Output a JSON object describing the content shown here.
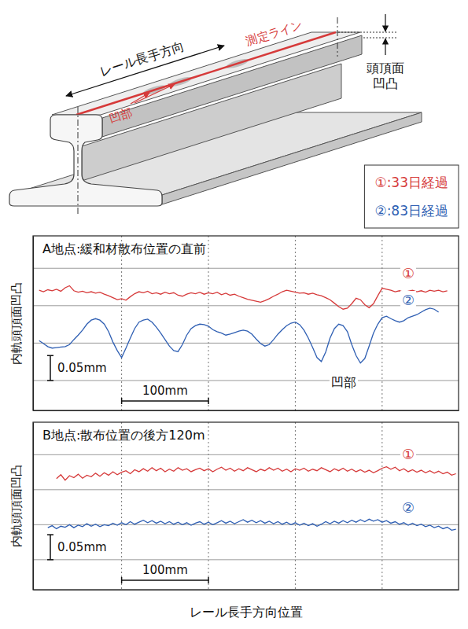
{
  "diagram": {
    "direction": "レール長手方向",
    "measure_line": "測定ライン",
    "recess": "凹部",
    "head_unevenness": [
      "頭頂面",
      "凹凸"
    ]
  },
  "chart_data": [
    {
      "type": "line",
      "title": "A地点:緩和材散布位置の直前",
      "ylabel": "内軌頭頂面凹凸",
      "x": [
        -95,
        -90,
        -85,
        -80,
        -75,
        -70,
        -65,
        -60,
        -55,
        -50,
        -45,
        -40,
        -35,
        -30,
        -25,
        -20,
        -15,
        -10,
        -5,
        0,
        5,
        10,
        15,
        20,
        25,
        30,
        35,
        40,
        45,
        50,
        55,
        60,
        65,
        70,
        75,
        80,
        85,
        90,
        95,
        100,
        105,
        110,
        115,
        120,
        125,
        130,
        135,
        140,
        145,
        150,
        155,
        160,
        165,
        170,
        175,
        180,
        185,
        190,
        195,
        200,
        205,
        210,
        215,
        220,
        225,
        230,
        235,
        240,
        245,
        250,
        255,
        260,
        265,
        270,
        275,
        280,
        285,
        290,
        295,
        300,
        305,
        310,
        315,
        320,
        325,
        330,
        335,
        340,
        345,
        350,
        355,
        360,
        365,
        370,
        375,
        380,
        385
      ],
      "xlim": [
        -102,
        388
      ],
      "xticks": [
        0,
        100,
        200,
        300
      ],
      "ylim": [
        0,
        0.35
      ],
      "yticks": [
        0.06,
        0.135,
        0.21,
        0.285
      ],
      "grid": true,
      "tick_labels": false,
      "legend": "top-right",
      "series": [
        {
          "name": "①:33日経過",
          "label": "①",
          "color": "#d63a3a",
          "values": [
            0.241,
            0.238,
            0.242,
            0.24,
            0.243,
            0.239,
            0.246,
            0.25,
            0.24,
            0.237,
            0.239,
            0.236,
            0.238,
            0.235,
            0.237,
            0.233,
            0.23,
            0.226,
            0.222,
            0.224,
            0.221,
            0.228,
            0.234,
            0.238,
            0.236,
            0.239,
            0.234,
            0.236,
            0.233,
            0.237,
            0.234,
            0.236,
            0.231,
            0.229,
            0.233,
            0.236,
            0.234,
            0.237,
            0.233,
            0.236,
            0.234,
            0.237,
            0.232,
            0.235,
            0.231,
            0.233,
            0.229,
            0.226,
            0.223,
            0.221,
            0.219,
            0.217,
            0.22,
            0.224,
            0.229,
            0.233,
            0.238,
            0.241,
            0.239,
            0.237,
            0.235,
            0.236,
            0.233,
            0.235,
            0.232,
            0.23,
            0.226,
            0.222,
            0.215,
            0.208,
            0.203,
            0.205,
            0.214,
            0.225,
            0.222,
            0.212,
            0.206,
            0.214,
            0.23,
            0.245,
            0.243,
            0.241,
            0.238,
            0.24,
            0.237,
            0.239,
            0.241,
            0.238,
            0.24,
            0.237,
            0.241,
            0.239,
            0.241,
            0.238,
            0.24,
            null,
            null
          ]
        },
        {
          "name": "②:83日経過",
          "label": "②",
          "color": "#2f5fb3",
          "values": [
            0.14,
            0.134,
            0.128,
            0.125,
            0.126,
            0.127,
            0.128,
            0.132,
            0.142,
            0.151,
            0.161,
            0.173,
            0.181,
            0.184,
            0.181,
            0.173,
            0.158,
            0.137,
            0.12,
            0.106,
            0.125,
            0.145,
            0.164,
            0.177,
            0.181,
            0.183,
            0.177,
            0.167,
            0.155,
            0.142,
            0.129,
            0.12,
            0.118,
            0.132,
            0.151,
            0.164,
            0.17,
            0.173,
            0.172,
            0.169,
            0.162,
            0.158,
            0.155,
            0.151,
            0.153,
            0.156,
            0.159,
            0.161,
            0.159,
            0.153,
            0.143,
            0.134,
            0.129,
            0.132,
            0.142,
            0.153,
            0.162,
            0.17,
            0.175,
            0.177,
            0.172,
            0.161,
            0.145,
            0.126,
            0.106,
            0.098,
            0.117,
            0.145,
            0.164,
            0.173,
            0.17,
            0.158,
            0.132,
            0.11,
            0.095,
            0.104,
            0.129,
            0.155,
            0.173,
            0.186,
            0.189,
            0.184,
            0.18,
            0.177,
            0.18,
            0.186,
            0.189,
            0.192,
            0.197,
            0.202,
            0.205,
            0.203,
            0.197,
            null,
            null,
            null,
            null
          ]
        }
      ],
      "annotations": [
        "凹部"
      ],
      "scale_bars": {
        "x": {
          "value": 100,
          "label": "100mm"
        },
        "y": {
          "value": 0.05,
          "label": "0.05mm"
        }
      }
    },
    {
      "type": "line",
      "title": "B地点:散布位置の後方120m",
      "ylabel": "内軌頭頂面凹凸",
      "xlabel": "レール長手方向位置",
      "x": [
        -95,
        -90,
        -85,
        -80,
        -75,
        -70,
        -65,
        -60,
        -55,
        -50,
        -45,
        -40,
        -35,
        -30,
        -25,
        -20,
        -15,
        -10,
        -5,
        0,
        5,
        10,
        15,
        20,
        25,
        30,
        35,
        40,
        45,
        50,
        55,
        60,
        65,
        70,
        75,
        80,
        85,
        90,
        95,
        100,
        105,
        110,
        115,
        120,
        125,
        130,
        135,
        140,
        145,
        150,
        155,
        160,
        165,
        170,
        175,
        180,
        185,
        190,
        195,
        200,
        205,
        210,
        215,
        220,
        225,
        230,
        235,
        240,
        245,
        250,
        255,
        260,
        265,
        270,
        275,
        280,
        285,
        290,
        295,
        300,
        305,
        310,
        315,
        320,
        325,
        330,
        335,
        340,
        345,
        350,
        355,
        360,
        365,
        370,
        375,
        380,
        385
      ],
      "xlim": [
        -102,
        388
      ],
      "xticks": [
        0,
        100,
        200,
        300
      ],
      "ylim": [
        0,
        0.335
      ],
      "yticks": [
        0.06,
        0.13,
        0.2,
        0.27
      ],
      "grid": true,
      "tick_labels": false,
      "series": [
        {
          "label": "①",
          "color": "#d63a3a",
          "values": [
            null,
            null,
            null,
            null,
            0.222,
            0.23,
            0.219,
            0.228,
            0.224,
            0.231,
            0.223,
            0.229,
            0.226,
            0.233,
            0.227,
            0.234,
            0.229,
            0.236,
            0.23,
            0.235,
            0.238,
            0.232,
            0.24,
            0.236,
            0.242,
            0.237,
            0.244,
            0.238,
            0.243,
            0.236,
            0.241,
            0.237,
            0.244,
            0.239,
            0.242,
            0.236,
            0.24,
            0.243,
            0.238,
            0.242,
            0.236,
            0.241,
            0.245,
            0.239,
            0.243,
            0.237,
            0.242,
            0.238,
            0.244,
            0.24,
            0.236,
            0.241,
            0.238,
            0.244,
            0.239,
            0.243,
            0.237,
            0.241,
            0.236,
            0.242,
            0.239,
            0.243,
            0.237,
            0.241,
            0.238,
            0.244,
            0.24,
            0.236,
            0.242,
            0.238,
            0.243,
            0.237,
            0.241,
            0.236,
            0.24,
            0.235,
            0.239,
            0.234,
            0.238,
            0.243,
            0.246,
            0.241,
            0.245,
            0.238,
            0.242,
            0.236,
            0.24,
            0.235,
            0.239,
            0.234,
            0.238,
            0.233,
            0.237,
            0.232,
            0.235,
            0.229,
            0.232
          ]
        },
        {
          "label": "②",
          "color": "#2f5fb3",
          "values": [
            null,
            null,
            0.124,
            0.128,
            0.122,
            0.127,
            0.125,
            0.13,
            0.124,
            0.129,
            0.126,
            0.132,
            0.127,
            0.131,
            0.126,
            0.13,
            0.128,
            0.133,
            0.129,
            0.134,
            0.13,
            0.136,
            0.131,
            0.135,
            0.139,
            0.134,
            0.138,
            0.133,
            0.137,
            0.132,
            0.136,
            0.131,
            0.135,
            0.13,
            0.134,
            0.129,
            0.133,
            0.136,
            0.131,
            0.135,
            0.13,
            0.134,
            0.138,
            0.133,
            0.137,
            0.132,
            0.136,
            0.14,
            0.135,
            0.139,
            0.134,
            0.138,
            0.133,
            0.137,
            0.132,
            0.136,
            0.131,
            0.135,
            0.13,
            0.134,
            0.129,
            0.133,
            0.128,
            0.132,
            0.127,
            0.131,
            0.136,
            0.132,
            0.137,
            0.133,
            0.138,
            0.134,
            0.139,
            0.135,
            0.14,
            0.136,
            0.141,
            0.137,
            0.14,
            0.135,
            0.138,
            0.133,
            0.136,
            0.131,
            0.134,
            0.129,
            0.133,
            0.128,
            0.131,
            0.126,
            0.129,
            0.124,
            0.127,
            0.122,
            0.125,
            0.119,
            0.121
          ]
        }
      ],
      "scale_bars": {
        "x": {
          "value": 100,
          "label": "100mm"
        },
        "y": {
          "value": 0.05,
          "label": "0.05mm"
        }
      }
    }
  ]
}
